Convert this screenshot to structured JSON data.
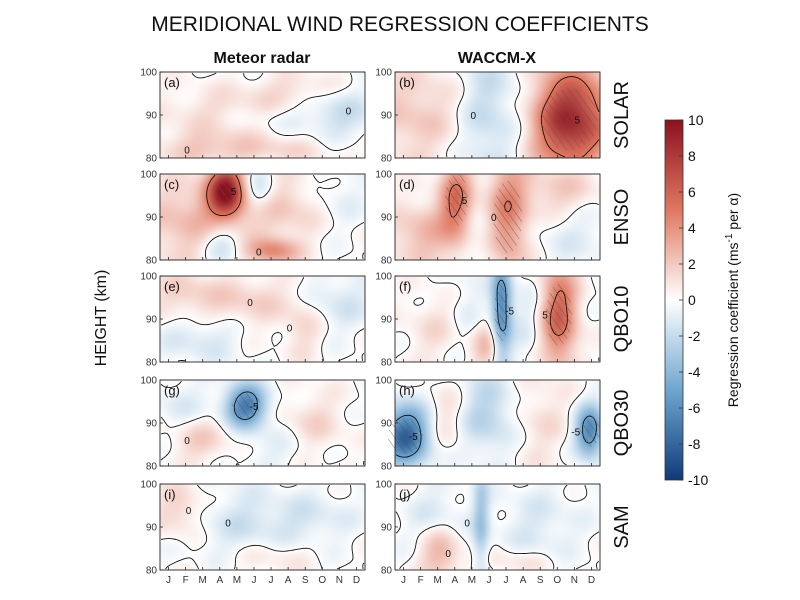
{
  "chart_data": {
    "type": "heatmap",
    "title": "MERIDIONAL WIND REGRESSION COEFFICIENTS",
    "columns": [
      "Meteor radar",
      "WACCM-X"
    ],
    "rows": [
      "SOLAR",
      "ENSO",
      "QBO10",
      "QBO30",
      "SAM"
    ],
    "ylabel": "HEIGHT (km)",
    "y_ticks": [
      "80",
      "90",
      "100"
    ],
    "ylim": [
      80,
      100
    ],
    "x_ticks": [
      "J",
      "F",
      "M",
      "A",
      "M",
      "J",
      "J",
      "A",
      "S",
      "O",
      "N",
      "D"
    ],
    "colorbar": {
      "label": "Regression coefficient (ms-1 per α)",
      "label_main": "Regression coefficient (ms",
      "label_sup": "-1",
      "label_tail": " per α)",
      "ticks": [
        "10",
        "8",
        "6",
        "4",
        "2",
        "0",
        "-2",
        "-4",
        "-6",
        "-8",
        "-10"
      ],
      "range": [
        -10,
        10
      ],
      "colormap": "red-white-blue",
      "max_color": "#8c1120",
      "min_color": "#0d3b7a"
    },
    "panel_labels": [
      "(a)",
      "(b)",
      "(c)",
      "(d)",
      "(e)",
      "(f)",
      "(g)",
      "(h)",
      "(i)",
      "(j)"
    ],
    "contour_labels": [
      "-5",
      "0",
      "5"
    ],
    "panels": [
      {
        "label": "(a)",
        "col": "Meteor radar",
        "row": "SOLAR",
        "blobs": [
          [
            0.3,
            0.5,
            0.3,
            0.3,
            1.5
          ],
          [
            0.7,
            0.2,
            0.25,
            0.2,
            1.4
          ],
          [
            0.2,
            0.9,
            0.25,
            0.2,
            1.6
          ],
          [
            0.6,
            0.9,
            0.35,
            0.15,
            1.2
          ],
          [
            0.88,
            0.45,
            0.18,
            0.35,
            -1.8
          ],
          [
            0.5,
            0.55,
            0.3,
            0.15,
            -0.8
          ]
        ]
      },
      {
        "label": "(b)",
        "col": "WACCM-X",
        "row": "SOLAR",
        "blobs": [
          [
            0.85,
            0.55,
            0.2,
            0.6,
            9.0
          ],
          [
            0.1,
            0.5,
            0.25,
            0.6,
            2.0
          ],
          [
            0.45,
            0.5,
            0.15,
            0.8,
            -2.2
          ],
          [
            0.65,
            0.45,
            0.12,
            0.6,
            -1.2
          ]
        ]
      },
      {
        "label": "(c)",
        "col": "Meteor radar",
        "row": "ENSO",
        "blobs": [
          [
            0.32,
            0.2,
            0.09,
            0.3,
            9.0
          ],
          [
            0.15,
            0.55,
            0.25,
            0.5,
            2.5
          ],
          [
            0.6,
            0.4,
            0.25,
            0.4,
            2.0
          ],
          [
            0.55,
            0.9,
            0.12,
            0.15,
            4.0
          ],
          [
            0.3,
            0.8,
            0.1,
            0.25,
            -2.5
          ],
          [
            0.48,
            0.2,
            0.08,
            0.25,
            -2.5
          ],
          [
            0.85,
            0.3,
            0.15,
            0.4,
            -1.2
          ]
        ]
      },
      {
        "label": "(d)",
        "col": "WACCM-X",
        "row": "ENSO",
        "blobs": [
          [
            0.3,
            0.3,
            0.08,
            0.5,
            5.0
          ],
          [
            0.55,
            0.5,
            0.1,
            0.7,
            4.5
          ],
          [
            0.15,
            0.7,
            0.2,
            0.4,
            2.5
          ],
          [
            0.8,
            0.2,
            0.2,
            0.3,
            2.0
          ],
          [
            0.4,
            0.75,
            0.12,
            0.35,
            -1.2
          ],
          [
            0.88,
            0.7,
            0.2,
            0.4,
            -1.0
          ]
        ]
      },
      {
        "label": "(e)",
        "col": "Meteor radar",
        "row": "QBO10",
        "blobs": [
          [
            0.4,
            0.3,
            0.3,
            0.3,
            1.8
          ],
          [
            0.7,
            0.6,
            0.1,
            0.35,
            1.5
          ],
          [
            0.2,
            0.7,
            0.2,
            0.3,
            -1.5
          ],
          [
            0.85,
            0.3,
            0.2,
            0.35,
            -1.5
          ],
          [
            0.1,
            0.2,
            0.15,
            0.3,
            1.2
          ]
        ]
      },
      {
        "label": "(f)",
        "col": "WACCM-X",
        "row": "QBO10",
        "blobs": [
          [
            0.52,
            0.4,
            0.05,
            0.6,
            -6.5
          ],
          [
            0.8,
            0.45,
            0.09,
            0.6,
            6.0
          ],
          [
            0.45,
            0.8,
            0.08,
            0.3,
            2.5
          ],
          [
            0.2,
            0.6,
            0.15,
            0.4,
            1.2
          ],
          [
            0.65,
            0.5,
            0.1,
            0.6,
            -1.0
          ],
          [
            0.35,
            0.4,
            0.1,
            0.5,
            -1.0
          ]
        ]
      },
      {
        "label": "(g)",
        "col": "Meteor radar",
        "row": "QBO30",
        "blobs": [
          [
            0.42,
            0.3,
            0.1,
            0.25,
            -7.0
          ],
          [
            0.2,
            0.7,
            0.15,
            0.25,
            1.8
          ],
          [
            0.75,
            0.55,
            0.15,
            0.4,
            1.5
          ],
          [
            0.1,
            0.3,
            0.15,
            0.3,
            -1.0
          ],
          [
            0.6,
            0.8,
            0.2,
            0.25,
            -1.0
          ]
        ]
      },
      {
        "label": "(h)",
        "col": "WACCM-X",
        "row": "QBO30",
        "blobs": [
          [
            0.05,
            0.65,
            0.12,
            0.35,
            -8.0
          ],
          [
            0.95,
            0.6,
            0.07,
            0.3,
            -6.5
          ],
          [
            0.45,
            0.4,
            0.15,
            0.5,
            -2.5
          ],
          [
            0.25,
            0.45,
            0.1,
            0.4,
            1.5
          ],
          [
            0.7,
            0.45,
            0.15,
            0.6,
            1.2
          ]
        ]
      },
      {
        "label": "(i)",
        "col": "Meteor radar",
        "row": "SAM",
        "blobs": [
          [
            0.1,
            0.3,
            0.12,
            0.3,
            2.0
          ],
          [
            0.4,
            0.45,
            0.25,
            0.4,
            -1.5
          ],
          [
            0.75,
            0.4,
            0.2,
            0.3,
            -1.2
          ],
          [
            0.55,
            0.85,
            0.2,
            0.2,
            1.0
          ]
        ]
      },
      {
        "label": "(j)",
        "col": "WACCM-X",
        "row": "SAM",
        "blobs": [
          [
            0.22,
            0.8,
            0.1,
            0.3,
            3.0
          ],
          [
            0.42,
            0.45,
            0.04,
            0.7,
            -3.0
          ],
          [
            0.2,
            0.4,
            0.15,
            0.4,
            -1.2
          ],
          [
            0.7,
            0.5,
            0.2,
            0.5,
            -1.2
          ],
          [
            0.6,
            0.9,
            0.2,
            0.15,
            1.2
          ]
        ]
      }
    ]
  }
}
